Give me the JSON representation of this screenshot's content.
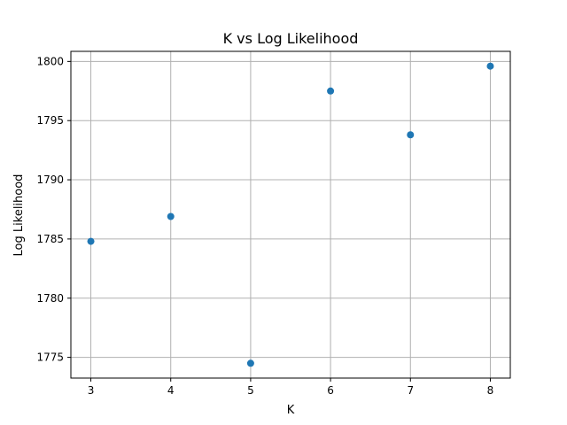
{
  "chart_data": {
    "type": "scatter",
    "title": "K vs Log Likelihood",
    "xlabel": "K",
    "ylabel": "Log Likelihood",
    "x": [
      3,
      4,
      5,
      6,
      7,
      8
    ],
    "y": [
      1784.8,
      1786.9,
      1774.5,
      1797.5,
      1793.8,
      1799.6
    ],
    "xlim": [
      2.75,
      8.25
    ],
    "ylim": [
      1773.25,
      1800.85
    ],
    "xticks": [
      "3",
      "4",
      "5",
      "6",
      "7",
      "8"
    ],
    "yticks": [
      "1775",
      "1780",
      "1785",
      "1790",
      "1795",
      "1800"
    ],
    "grid": true,
    "marker_color": "#1f77b4"
  }
}
